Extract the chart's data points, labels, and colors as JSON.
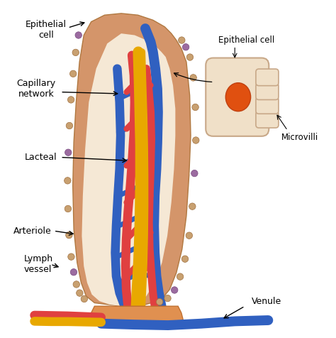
{
  "title": "",
  "labels": {
    "epithelial_cell_top": "Epithelial\ncell",
    "capillary_network": "Capillary\nnetwork",
    "lacteal": "Lacteal",
    "arteriole": "Arteriole",
    "lymph_vessel": "Lymph\nvessel",
    "venule": "Venule",
    "epithelial_cell_inset": "Epithelial cell",
    "microvilli": "Microvilli"
  },
  "colors": {
    "background": "#ffffff",
    "outer_villus": "#D4956A",
    "outer_villus_edge": "#B07840",
    "inner_villus": "#F5E8D5",
    "epithelial_dots": "#C8A070",
    "epithelial_dots_edge": "#A07040",
    "purple_dots": "#9B6BA0",
    "purple_dots_edge": "#7A4A80",
    "red_capillary": "#E04040",
    "blue_capillary": "#3060C0",
    "yellow_lacteal": "#E8A800",
    "base_color": "#E09050",
    "base_edge": "#C07030",
    "inset_cell_body": "#F0E0C8",
    "inset_nucleus": "#E05010",
    "inset_nucleus_edge": "#C04010",
    "inset_outline": "#C8A888",
    "text_color": "#000000",
    "arrow_color": "#000000"
  }
}
